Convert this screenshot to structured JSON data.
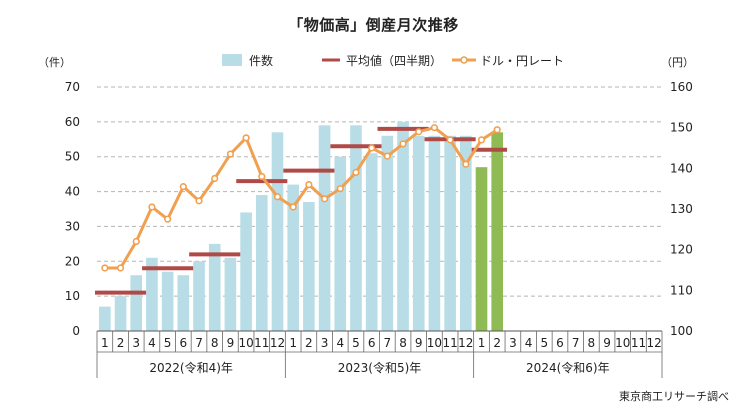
{
  "chart_data": {
    "type": "bar+line",
    "title": "「物価高」倒産月次推移",
    "left_unit": "（件）",
    "right_unit": "（円）",
    "left_ylim": [
      0,
      70
    ],
    "left_ticks": [
      "0",
      "10",
      "20",
      "30",
      "40",
      "50",
      "60",
      "70"
    ],
    "right_ylim": [
      100,
      160
    ],
    "right_ticks": [
      "100",
      "110",
      "120",
      "130",
      "140",
      "150",
      "160"
    ],
    "month_labels": [
      "1",
      "2",
      "3",
      "4",
      "5",
      "6",
      "7",
      "8",
      "9",
      "10",
      "11",
      "12",
      "1",
      "2",
      "3",
      "4",
      "5",
      "6",
      "7",
      "8",
      "9",
      "10",
      "11",
      "12",
      "1",
      "2",
      "3",
      "4",
      "5",
      "6",
      "7",
      "8",
      "9",
      "10",
      "11",
      "12"
    ],
    "year_labels": [
      "2022(令和4)年",
      "2023(令和5)年",
      "2024(令和6)年"
    ],
    "legend": {
      "bars": "件数",
      "avg": "平均値（四半期）",
      "fx": "ドル・円レート"
    },
    "series": [
      {
        "name": "件数",
        "axis": "left",
        "values": [
          7,
          10,
          16,
          21,
          17,
          16,
          20,
          25,
          21,
          34,
          39,
          57,
          42,
          37,
          59,
          50,
          59,
          51,
          56,
          60,
          56,
          56,
          56,
          56,
          47,
          57
        ],
        "colors": [
          "#b8dde6",
          "#b8dde6",
          "#b8dde6",
          "#b8dde6",
          "#b8dde6",
          "#b8dde6",
          "#b8dde6",
          "#b8dde6",
          "#b8dde6",
          "#b8dde6",
          "#b8dde6",
          "#b8dde6",
          "#b8dde6",
          "#b8dde6",
          "#b8dde6",
          "#b8dde6",
          "#b8dde6",
          "#b8dde6",
          "#b8dde6",
          "#b8dde6",
          "#b8dde6",
          "#b8dde6",
          "#b8dde6",
          "#b8dde6",
          "#8fbb55",
          "#8fbb55"
        ]
      },
      {
        "name": "平均値（四半期）",
        "axis": "left",
        "segments": [
          {
            "start": 0,
            "end": 3,
            "value": 11
          },
          {
            "start": 3,
            "end": 6,
            "value": 18
          },
          {
            "start": 6,
            "end": 9,
            "value": 22
          },
          {
            "start": 9,
            "end": 12,
            "value": 43
          },
          {
            "start": 12,
            "end": 15,
            "value": 46
          },
          {
            "start": 15,
            "end": 18,
            "value": 53
          },
          {
            "start": 18,
            "end": 21,
            "value": 58
          },
          {
            "start": 21,
            "end": 24,
            "value": 55
          },
          {
            "start": 24,
            "end": 26,
            "value": 52
          }
        ]
      },
      {
        "name": "ドル・円レート",
        "axis": "right",
        "values": [
          115.5,
          115.5,
          122,
          130.5,
          127.5,
          135.5,
          132,
          137.5,
          143.5,
          147.5,
          138,
          133,
          130.5,
          136,
          132.5,
          135,
          139,
          145,
          143,
          146,
          149,
          150,
          147,
          141,
          147,
          149.5
        ]
      }
    ],
    "colors": {
      "bars_past": "#b8dde6",
      "bars_2024": "#8fbb55",
      "avg_line": "#b04a46",
      "fx_line": "#f0a050",
      "grid": "#b5b5b5"
    }
  },
  "source": "東京商工リサーチ調べ"
}
